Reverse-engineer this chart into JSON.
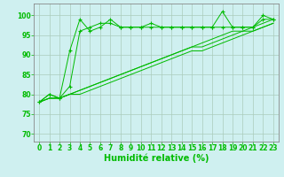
{
  "background_color": "#cff0f0",
  "grid_color": "#aaccbb",
  "line_color": "#00bb00",
  "xlabel": "Humidité relative (%)",
  "xlabel_fontsize": 7,
  "tick_fontsize": 5.5,
  "xlim": [
    -0.5,
    23.5
  ],
  "ylim": [
    68,
    103
  ],
  "yticks": [
    70,
    75,
    80,
    85,
    90,
    95,
    100
  ],
  "xticks": [
    0,
    1,
    2,
    3,
    4,
    5,
    6,
    7,
    8,
    9,
    10,
    11,
    12,
    13,
    14,
    15,
    16,
    17,
    18,
    19,
    20,
    21,
    22,
    23
  ],
  "series1": [
    78,
    80,
    79,
    91,
    99,
    96,
    97,
    99,
    97,
    97,
    97,
    98,
    97,
    97,
    97,
    97,
    97,
    97,
    101,
    97,
    97,
    97,
    100,
    99
  ],
  "series2": [
    78,
    80,
    79,
    82,
    96,
    97,
    98,
    98,
    97,
    97,
    97,
    97,
    97,
    97,
    97,
    97,
    97,
    97,
    97,
    97,
    97,
    97,
    99,
    99
  ],
  "series3": [
    78,
    79,
    79,
    80,
    81,
    82,
    83,
    84,
    85,
    86,
    87,
    88,
    89,
    90,
    91,
    92,
    93,
    94,
    95,
    96,
    96,
    97,
    98,
    99
  ],
  "series4": [
    78,
    79,
    79,
    80,
    81,
    82,
    83,
    84,
    85,
    86,
    87,
    88,
    89,
    90,
    91,
    92,
    92,
    93,
    94,
    95,
    96,
    96,
    97,
    98
  ],
  "series5": [
    78,
    79,
    79,
    80,
    80,
    81,
    82,
    83,
    84,
    85,
    86,
    87,
    88,
    89,
    90,
    91,
    91,
    92,
    93,
    94,
    95,
    96,
    97,
    98
  ]
}
